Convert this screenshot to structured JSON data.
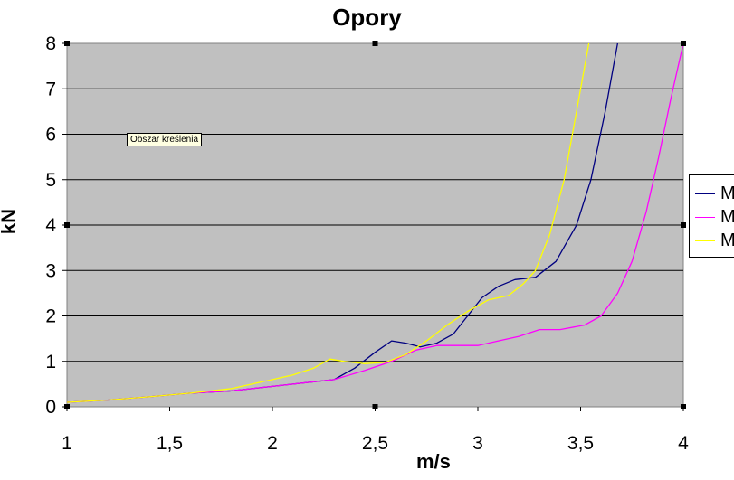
{
  "chart_data": {
    "type": "line",
    "title": "Opory",
    "xlabel": "m/s",
    "ylabel": "kN",
    "xlim": [
      1,
      4
    ],
    "ylim": [
      0,
      8
    ],
    "x_ticks": [
      "1",
      "1,5",
      "2",
      "2,5",
      "3",
      "3,5",
      "4"
    ],
    "y_ticks": [
      "0",
      "1",
      "2",
      "3",
      "4",
      "5",
      "6",
      "7",
      "8"
    ],
    "grid": "horizontal",
    "plot_background": "#c0c0c0",
    "legend_placement": "right",
    "annotation": "Obszar kreślenia",
    "series": [
      {
        "name": "M",
        "color": "#000080",
        "points": [
          [
            1.0,
            0.1
          ],
          [
            1.2,
            0.15
          ],
          [
            1.4,
            0.22
          ],
          [
            1.6,
            0.3
          ],
          [
            1.8,
            0.35
          ],
          [
            2.0,
            0.45
          ],
          [
            2.1,
            0.5
          ],
          [
            2.2,
            0.55
          ],
          [
            2.3,
            0.6
          ],
          [
            2.4,
            0.85
          ],
          [
            2.5,
            1.2
          ],
          [
            2.58,
            1.45
          ],
          [
            2.65,
            1.4
          ],
          [
            2.72,
            1.32
          ],
          [
            2.8,
            1.4
          ],
          [
            2.88,
            1.6
          ],
          [
            2.95,
            2.0
          ],
          [
            3.02,
            2.4
          ],
          [
            3.1,
            2.65
          ],
          [
            3.18,
            2.8
          ],
          [
            3.28,
            2.85
          ],
          [
            3.38,
            3.2
          ],
          [
            3.48,
            4.0
          ],
          [
            3.55,
            5.0
          ],
          [
            3.62,
            6.5
          ],
          [
            3.68,
            8.0
          ]
        ]
      },
      {
        "name": "M",
        "color": "#ff00ff",
        "points": [
          [
            1.0,
            0.1
          ],
          [
            1.2,
            0.15
          ],
          [
            1.4,
            0.22
          ],
          [
            1.6,
            0.3
          ],
          [
            1.8,
            0.35
          ],
          [
            2.0,
            0.45
          ],
          [
            2.2,
            0.55
          ],
          [
            2.3,
            0.6
          ],
          [
            2.45,
            0.8
          ],
          [
            2.58,
            1.0
          ],
          [
            2.7,
            1.25
          ],
          [
            2.8,
            1.35
          ],
          [
            3.0,
            1.35
          ],
          [
            3.1,
            1.45
          ],
          [
            3.2,
            1.55
          ],
          [
            3.3,
            1.7
          ],
          [
            3.4,
            1.7
          ],
          [
            3.52,
            1.8
          ],
          [
            3.6,
            2.0
          ],
          [
            3.68,
            2.5
          ],
          [
            3.75,
            3.2
          ],
          [
            3.82,
            4.3
          ],
          [
            3.88,
            5.5
          ],
          [
            3.94,
            6.8
          ],
          [
            4.0,
            8.0
          ]
        ]
      },
      {
        "name": "M",
        "color": "#ffff00",
        "points": [
          [
            1.0,
            0.1
          ],
          [
            1.2,
            0.15
          ],
          [
            1.4,
            0.22
          ],
          [
            1.6,
            0.3
          ],
          [
            1.8,
            0.4
          ],
          [
            2.0,
            0.6
          ],
          [
            2.1,
            0.7
          ],
          [
            2.2,
            0.85
          ],
          [
            2.28,
            1.05
          ],
          [
            2.35,
            1.0
          ],
          [
            2.45,
            0.95
          ],
          [
            2.55,
            0.98
          ],
          [
            2.65,
            1.15
          ],
          [
            2.75,
            1.45
          ],
          [
            2.85,
            1.8
          ],
          [
            2.95,
            2.1
          ],
          [
            3.05,
            2.35
          ],
          [
            3.15,
            2.45
          ],
          [
            3.22,
            2.7
          ],
          [
            3.28,
            3.0
          ],
          [
            3.35,
            3.8
          ],
          [
            3.42,
            5.0
          ],
          [
            3.48,
            6.5
          ],
          [
            3.54,
            8.0
          ]
        ]
      }
    ]
  }
}
